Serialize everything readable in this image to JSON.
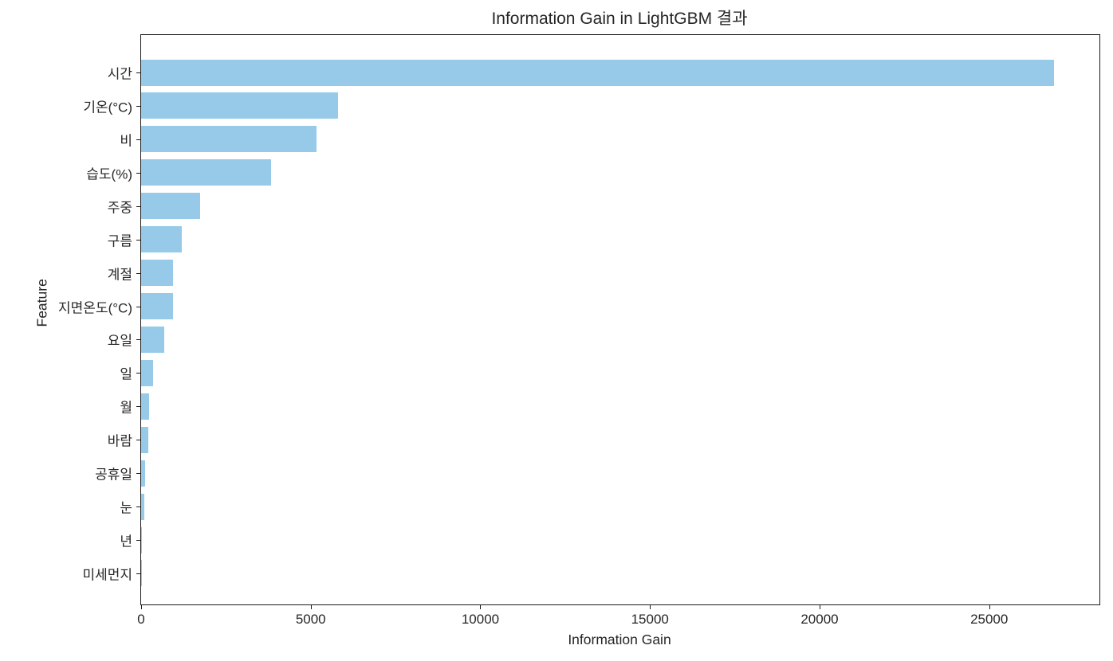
{
  "chart_data": {
    "type": "bar",
    "orientation": "horizontal",
    "title": "Information Gain in LightGBM 결과",
    "xlabel": "Information Gain",
    "ylabel": "Feature",
    "categories": [
      "시간",
      "기온(°C)",
      "비",
      "습도(%)",
      "주중",
      "구름",
      "계절",
      "지면온도(°C)",
      "요일",
      "일",
      "월",
      "바람",
      "공휴일",
      "눈",
      "년",
      "미세먼지"
    ],
    "values": [
      26900,
      5800,
      5180,
      3820,
      1730,
      1190,
      950,
      930,
      670,
      360,
      235,
      210,
      120,
      100,
      15,
      3
    ],
    "xticks": [
      0,
      5000,
      10000,
      15000,
      20000,
      25000
    ],
    "xlim": [
      0,
      28250
    ],
    "grid": false,
    "legend": null,
    "bar_color": "#97CAE8",
    "axis_color": "#1a1a1a",
    "text_color": "#262626"
  }
}
